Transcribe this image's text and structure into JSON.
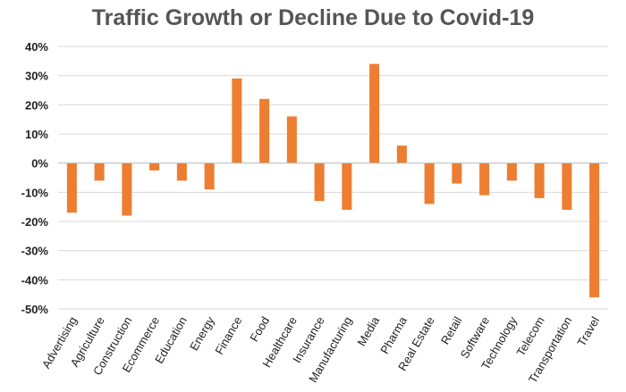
{
  "chart_data": {
    "type": "bar",
    "title": "Traffic Growth or Decline Due to Covid-19",
    "xlabel": "",
    "ylabel": "",
    "ylim": [
      -50,
      40
    ],
    "y_ticks": [
      40,
      30,
      20,
      10,
      0,
      -10,
      -20,
      -30,
      -40,
      -50
    ],
    "y_tick_labels": [
      "40%",
      "30%",
      "20%",
      "10%",
      "0%",
      "-10%",
      "-20%",
      "-30%",
      "-40%",
      "-50%"
    ],
    "grid": true,
    "bar_color": "#ED7D31",
    "categories": [
      "Advertising",
      "Agriculture",
      "Construction",
      "Ecommerce",
      "Education",
      "Energy",
      "Finance",
      "Food",
      "Healthcare",
      "Insurance",
      "Manufacturing",
      "Media",
      "Pharma",
      "Real Estate",
      "Retail",
      "Software",
      "Technology",
      "Telecom",
      "Transportation",
      "Travel"
    ],
    "values": [
      -17,
      -6,
      -18,
      -2.5,
      -6,
      -9,
      29,
      22,
      16,
      -13,
      -16,
      34,
      6,
      -14,
      -7,
      -11,
      -6,
      -12,
      -16,
      -46
    ]
  }
}
